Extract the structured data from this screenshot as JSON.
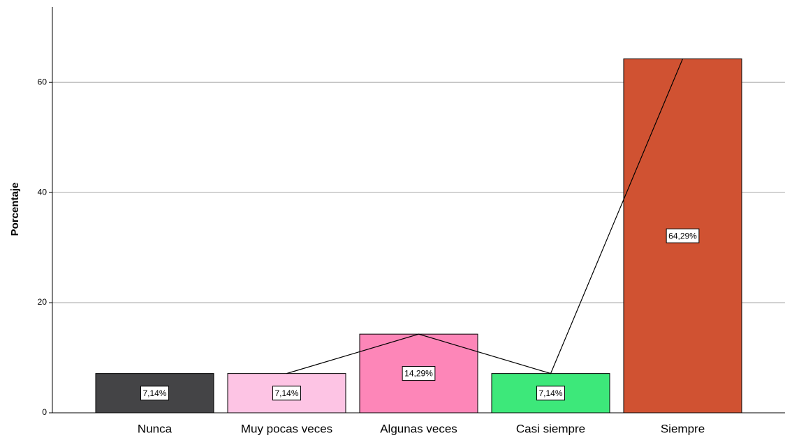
{
  "chart_data": {
    "type": "bar",
    "ylabel": "Porcentaje",
    "categories": [
      "Nunca",
      "Muy pocas veces",
      "Algunas veces",
      "Casi siempre",
      "Siempre"
    ],
    "values": [
      7.14,
      7.14,
      14.29,
      7.14,
      64.29
    ],
    "value_labels": [
      "7,14%",
      "7,14%",
      "14,29%",
      "7,14%",
      "64,29%"
    ],
    "colors": [
      "#444446",
      "#fdc4e4",
      "#fd86b8",
      "#3de87a",
      "#d05232"
    ],
    "line": {
      "values": [
        null,
        7.14,
        14.29,
        7.14,
        64.29
      ],
      "color": "#000000"
    },
    "ylim": [
      0,
      73.7
    ],
    "yticks": [
      0,
      20,
      40,
      60
    ],
    "grid": true
  }
}
